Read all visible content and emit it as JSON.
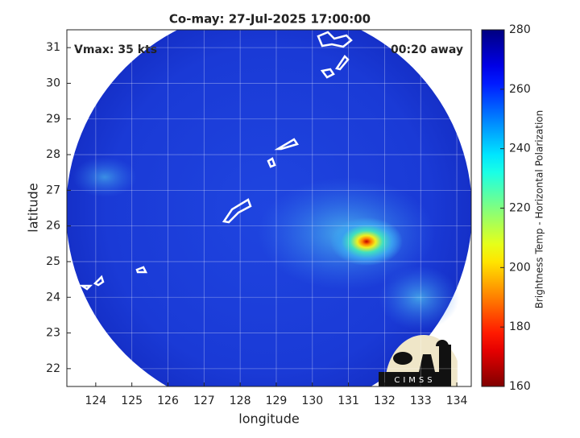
{
  "title": "Co-may: 27-Jul-2025 17:00:00",
  "annotations": {
    "vmax": "Vmax: 35 kts",
    "time_away": "00:20 away"
  },
  "map": {
    "xlabel": "longitude",
    "ylabel": "latitude",
    "xlim": [
      123.2,
      134.4
    ],
    "ylim": [
      21.5,
      31.5
    ],
    "xticks": [
      124,
      125,
      126,
      127,
      128,
      129,
      130,
      131,
      132,
      133,
      134
    ],
    "yticks": [
      22,
      23,
      24,
      25,
      26,
      27,
      28,
      29,
      30,
      31
    ],
    "grid": true
  },
  "colorbar": {
    "label": "Brightness Temp - Horizontal Polarization",
    "lim": [
      160,
      280
    ],
    "ticks": [
      160,
      180,
      200,
      220,
      240,
      260,
      280
    ],
    "colormap": "jet-reversed"
  },
  "logo": {
    "text": "CIMSS"
  }
}
